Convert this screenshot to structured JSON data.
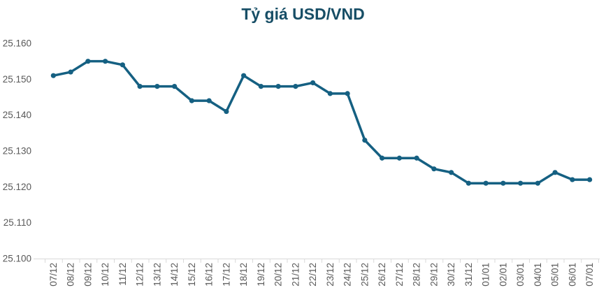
{
  "chart_data": {
    "type": "line",
    "title": "Tỷ giá USD/VND",
    "categories": [
      "07/12",
      "08/12",
      "09/12",
      "10/12",
      "11/12",
      "12/12",
      "13/12",
      "14/12",
      "15/12",
      "16/12",
      "17/12",
      "18/12",
      "19/12",
      "20/12",
      "21/12",
      "22/12",
      "23/12",
      "24/12",
      "25/12",
      "26/12",
      "27/12",
      "28/12",
      "29/12",
      "30/12",
      "31/12",
      "01/01",
      "02/01",
      "03/01",
      "04/01",
      "05/01",
      "06/01",
      "07/01"
    ],
    "values": [
      25151,
      25152,
      25155,
      25155,
      25154,
      25148,
      25148,
      25148,
      25144,
      25144,
      25141,
      25151,
      25148,
      25148,
      25148,
      25149,
      25146,
      25146,
      25133,
      25128,
      25128,
      25128,
      25125,
      25124,
      25121,
      25121,
      25121,
      25121,
      25121,
      25124,
      25122,
      25122
    ],
    "xlabel": "",
    "ylabel": "",
    "ylim": [
      25100,
      25160
    ],
    "y_ticks": [
      {
        "label": "25.160",
        "value": 25160
      },
      {
        "label": "25.150",
        "value": 25150
      },
      {
        "label": "25.140",
        "value": 25140
      },
      {
        "label": "25.130",
        "value": 25130
      },
      {
        "label": "25.120",
        "value": 25120
      },
      {
        "label": "25.110",
        "value": 25110
      },
      {
        "label": "25.100",
        "value": 25100
      }
    ],
    "grid": false,
    "legend_position": "none",
    "x_label_rotation": -90,
    "colors": {
      "line": "#156082",
      "marker": "#156082",
      "title": "#174e66",
      "axis_line": "#d9d9d9",
      "tick_labels": "#595959",
      "background": "#ffffff"
    }
  }
}
